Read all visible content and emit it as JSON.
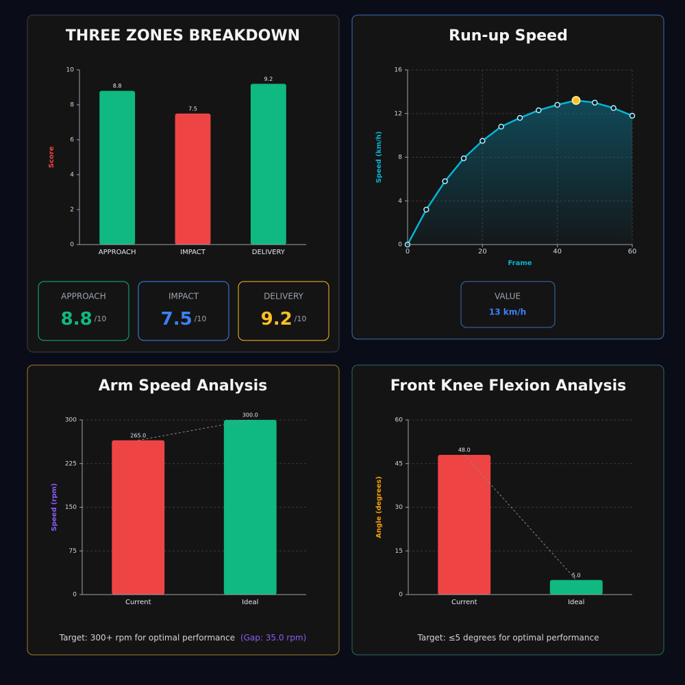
{
  "chart_data": [
    {
      "type": "bar",
      "title": "THREE ZONES BREAKDOWN",
      "y_label": "Score",
      "categories": [
        "APPROACH",
        "IMPACT",
        "DELIVERY"
      ],
      "values": [
        8.8,
        7.5,
        9.2
      ],
      "colors": [
        "#10b981",
        "#ef4444",
        "#10b981"
      ],
      "ylim": [
        0,
        10
      ],
      "yticks": [
        0,
        2,
        4,
        6,
        8,
        10
      ],
      "grid": false,
      "cards": [
        {
          "label": "APPROACH",
          "value": 8.8,
          "suffix": "/10",
          "color": "#10b981"
        },
        {
          "label": "IMPACT",
          "value": 7.5,
          "suffix": "/10",
          "color": "#3b82f6"
        },
        {
          "label": "DELIVERY",
          "value": 9.2,
          "suffix": "/10",
          "color": "#fbbf24"
        }
      ]
    },
    {
      "type": "line",
      "title": "Run-up Speed",
      "x_label": "Frame",
      "y_label": "Speed (km/h)",
      "x": [
        0,
        5,
        10,
        15,
        20,
        25,
        30,
        35,
        40,
        45,
        50,
        55,
        60
      ],
      "values": [
        0,
        3.2,
        5.8,
        7.9,
        9.5,
        10.8,
        11.6,
        12.3,
        12.8,
        13.2,
        13.0,
        12.5,
        11.8
      ],
      "color": "#06b6d4",
      "xlim": [
        0,
        60
      ],
      "xticks": [
        0,
        20,
        40,
        60
      ],
      "ylim": [
        0,
        16
      ],
      "yticks": [
        0,
        4,
        8,
        12,
        16
      ],
      "grid": true,
      "card": {
        "label": "VALUE",
        "text": "13 km/h"
      }
    },
    {
      "type": "bar",
      "title": "Arm Speed Analysis",
      "y_label": "Speed (rpm)",
      "categories": [
        "Current",
        "Ideal"
      ],
      "values": [
        265,
        300
      ],
      "value_labels": [
        "265.0",
        "300.0"
      ],
      "colors": [
        "#ef4444",
        "#10b981"
      ],
      "ylim": [
        0,
        300
      ],
      "yticks": [
        0,
        75,
        150,
        225,
        300
      ],
      "grid": true,
      "connector": true,
      "footnote": "Target: 300+ rpm for optimal performance",
      "gap_note": "(Gap: 35.0 rpm)"
    },
    {
      "type": "bar",
      "title": "Front Knee Flexion Analysis",
      "y_label": "Angle (degrees)",
      "categories": [
        "Current",
        "Ideal"
      ],
      "values": [
        48,
        5
      ],
      "value_labels": [
        "48.0",
        "5.0"
      ],
      "colors": [
        "#ef4444",
        "#10b981"
      ],
      "ylim": [
        0,
        60
      ],
      "yticks": [
        0,
        15,
        30,
        45,
        60
      ],
      "grid": true,
      "connector": true,
      "footnote": "Target: ≤5 degrees for optimal performance"
    }
  ]
}
